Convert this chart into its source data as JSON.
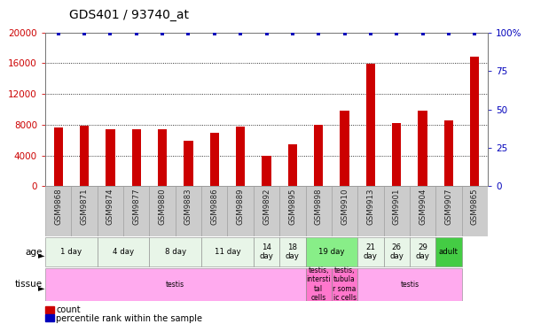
{
  "title": "GDS401 / 93740_at",
  "samples": [
    "GSM9868",
    "GSM9871",
    "GSM9874",
    "GSM9877",
    "GSM9880",
    "GSM9883",
    "GSM9886",
    "GSM9889",
    "GSM9892",
    "GSM9895",
    "GSM9898",
    "GSM9910",
    "GSM9913",
    "GSM9901",
    "GSM9904",
    "GSM9907",
    "GSM9865"
  ],
  "counts": [
    7700,
    7900,
    7400,
    7400,
    7400,
    5900,
    6900,
    7800,
    4000,
    5500,
    8000,
    9800,
    15900,
    8200,
    9800,
    8600,
    16800
  ],
  "percentiles": [
    99,
    99,
    99,
    99,
    99,
    99,
    99,
    99,
    99,
    99,
    99,
    99,
    99,
    99,
    99,
    99,
    99
  ],
  "ylim_left": [
    0,
    20000
  ],
  "ylim_right": [
    0,
    100
  ],
  "yticks_left": [
    0,
    4000,
    8000,
    12000,
    16000,
    20000
  ],
  "yticks_right": [
    0,
    25,
    50,
    75,
    100
  ],
  "age_groups": [
    {
      "label": "1 day",
      "start": 0,
      "end": 2,
      "color": "#e8f5e8"
    },
    {
      "label": "4 day",
      "start": 2,
      "end": 4,
      "color": "#e8f5e8"
    },
    {
      "label": "8 day",
      "start": 4,
      "end": 6,
      "color": "#e8f5e8"
    },
    {
      "label": "11 day",
      "start": 6,
      "end": 8,
      "color": "#e8f5e8"
    },
    {
      "label": "14\nday",
      "start": 8,
      "end": 9,
      "color": "#e8f5e8"
    },
    {
      "label": "18\nday",
      "start": 9,
      "end": 10,
      "color": "#e8f5e8"
    },
    {
      "label": "19 day",
      "start": 10,
      "end": 12,
      "color": "#88ee88"
    },
    {
      "label": "21\nday",
      "start": 12,
      "end": 13,
      "color": "#e8f5e8"
    },
    {
      "label": "26\nday",
      "start": 13,
      "end": 14,
      "color": "#e8f5e8"
    },
    {
      "label": "29\nday",
      "start": 14,
      "end": 15,
      "color": "#e8f5e8"
    },
    {
      "label": "adult",
      "start": 15,
      "end": 16,
      "color": "#44cc44"
    }
  ],
  "tissue_groups": [
    {
      "label": "testis",
      "start": 0,
      "end": 10,
      "color": "#ffaaee"
    },
    {
      "label": "testis,\nintersti\ntal\ncells",
      "start": 10,
      "end": 11,
      "color": "#ff77cc"
    },
    {
      "label": "testis,\ntubula\nr soma\nic cells",
      "start": 11,
      "end": 12,
      "color": "#ff77cc"
    },
    {
      "label": "testis",
      "start": 12,
      "end": 16,
      "color": "#ffaaee"
    }
  ],
  "bar_color": "#cc0000",
  "dot_color": "#0000bb",
  "title_fontsize": 10,
  "tick_fontsize": 7.5,
  "left_axis_color": "#cc0000",
  "right_axis_color": "#0000bb",
  "sample_bg_color": "#cccccc",
  "sample_text_color": "#222222"
}
